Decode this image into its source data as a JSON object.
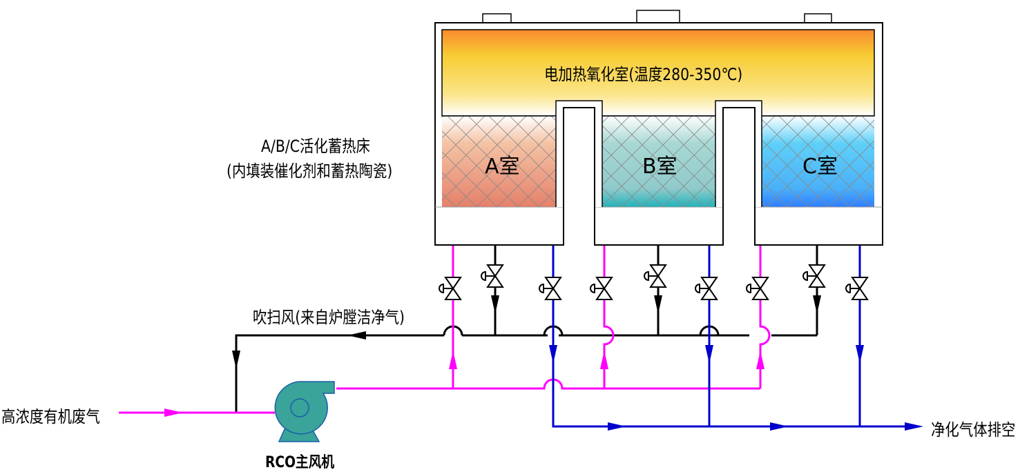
{
  "labels": {
    "oxidation_chamber": "电加热氧化室(温度280-350℃)",
    "bed_title": "A/B/C活化蓄热床",
    "bed_subtitle": "(内填装催化剂和蓄热陶瓷)",
    "room_a": "A室",
    "room_b": "B室",
    "room_c": "C室",
    "purge_air": "吹扫风(来自炉膛洁净气)",
    "inlet_gas": "高浓度有机废气",
    "fan": "RCO主风机",
    "outlet_gas": "净化气体排空"
  },
  "colors": {
    "inlet_line": "#ff00ff",
    "outlet_line": "#0000cc",
    "purge_line": "#000000",
    "fan": "#3aa39a",
    "room_a": "#e5806a",
    "room_b": "#2ab7b7",
    "room_c": "#2f86ff",
    "oxidation_top": "#f98a30",
    "oxidation_mid": "#f7d23a"
  },
  "icons": [
    "valve-icon",
    "arrow-icon",
    "fan-icon"
  ]
}
